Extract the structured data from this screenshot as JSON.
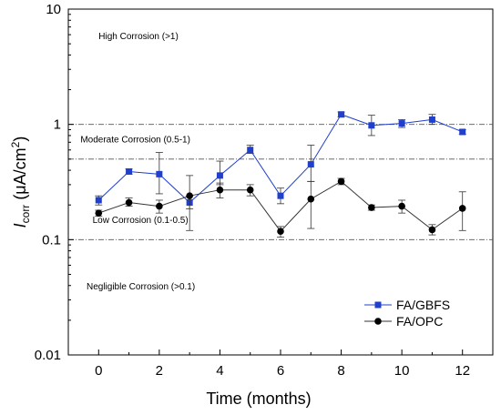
{
  "chart_data": {
    "type": "line",
    "xlabel": "Time (months)",
    "ylabel": {
      "main": "I",
      "sub": "corr",
      "rest": " (μA/cm",
      "sup": "2",
      "close": ")"
    },
    "yscale": "log",
    "xlim": [
      -1,
      13
    ],
    "ylim": [
      0.01,
      10
    ],
    "xticks": [
      0,
      2,
      4,
      6,
      8,
      10,
      12
    ],
    "xtick_labels": [
      "0",
      "2",
      "4",
      "6",
      "8",
      "10",
      "12"
    ],
    "yticks": [
      0.01,
      0.1,
      1,
      10
    ],
    "ytick_labels": [
      "0.01",
      "0.1",
      "1",
      "10"
    ],
    "grid": false,
    "legend_position": "lower-right",
    "reference_lines": [
      0.1,
      0.5,
      1
    ],
    "zone_labels": [
      {
        "text": "High Corrosion (>1)",
        "x": 0,
        "y": 5.5
      },
      {
        "text": "Moderate Corrosion (0.5-1)",
        "x": -0.6,
        "y": 0.7
      },
      {
        "text": "Low Corrosion (0.1-0.5)",
        "x": -0.2,
        "y": 0.14
      },
      {
        "text": "Negligible Corrosion (>0.1)",
        "x": -0.4,
        "y": 0.037
      }
    ],
    "series": [
      {
        "name": "FA/GBFS",
        "color": "#1f3fcc",
        "marker": "square",
        "x": [
          0,
          1,
          2,
          3,
          4,
          5,
          6,
          7,
          8,
          9,
          10,
          11,
          12
        ],
        "y": [
          0.22,
          0.39,
          0.37,
          0.21,
          0.36,
          0.6,
          0.24,
          0.45,
          1.22,
          0.98,
          1.02,
          1.1,
          0.86
        ],
        "err_low": [
          0.2,
          0.37,
          0.25,
          0.185,
          0.3,
          0.56,
          0.205,
          0.32,
          1.16,
          0.8,
          0.94,
          1.0,
          0.82
        ],
        "err_high": [
          0.24,
          0.41,
          0.57,
          0.24,
          0.48,
          0.66,
          0.28,
          0.66,
          1.28,
          1.2,
          1.1,
          1.22,
          0.9
        ]
      },
      {
        "name": "FA/OPC",
        "color": "#000000",
        "marker": "circle",
        "x": [
          0,
          1,
          2,
          3,
          4,
          5,
          6,
          7,
          8,
          9,
          10,
          11,
          12
        ],
        "y": [
          0.17,
          0.21,
          0.195,
          0.24,
          0.27,
          0.27,
          0.118,
          0.225,
          0.32,
          0.19,
          0.195,
          0.122,
          0.187
        ],
        "err_low": [
          0.16,
          0.195,
          0.17,
          0.12,
          0.23,
          0.24,
          0.105,
          0.125,
          0.3,
          0.18,
          0.17,
          0.11,
          0.12
        ],
        "err_high": [
          0.18,
          0.23,
          0.22,
          0.36,
          0.31,
          0.3,
          0.13,
          0.32,
          0.34,
          0.2,
          0.22,
          0.135,
          0.26
        ]
      }
    ]
  }
}
